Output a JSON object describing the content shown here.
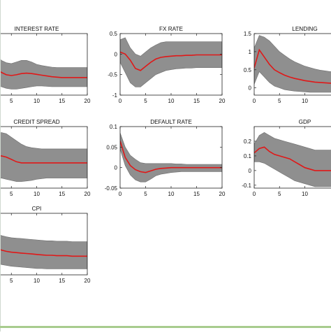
{
  "figure": {
    "band_color": "#8f8f8f",
    "line_color": "#e01818",
    "axes_color": "#222222"
  },
  "chart_data": [
    {
      "type": "line",
      "title": "INTEREST RATE",
      "xlim": [
        0,
        20
      ],
      "x_ticks": [
        "5",
        "10",
        "15",
        "20"
      ],
      "y_ticks": [],
      "x": [
        0,
        1,
        2,
        3,
        4,
        5,
        6,
        7,
        8,
        9,
        10,
        11,
        12,
        13,
        14,
        15,
        16,
        17,
        18,
        19,
        20
      ],
      "series": [
        {
          "role": "median",
          "values": [
            0.85,
            0.72,
            0.58,
            0.48,
            0.42,
            0.4,
            0.42,
            0.45,
            0.46,
            0.45,
            0.43,
            0.41,
            0.39,
            0.37,
            0.36,
            0.35,
            0.35,
            0.35,
            0.35,
            0.35,
            0.35
          ]
        },
        {
          "role": "upper",
          "values": [
            1.3,
            1.15,
            0.95,
            0.78,
            0.72,
            0.7,
            0.74,
            0.78,
            0.78,
            0.74,
            0.68,
            0.65,
            0.63,
            0.61,
            0.6,
            0.6,
            0.6,
            0.6,
            0.6,
            0.6,
            0.6
          ]
        },
        {
          "role": "lower",
          "values": [
            0.35,
            0.25,
            0.18,
            0.12,
            0.08,
            0.06,
            0.06,
            0.08,
            0.1,
            0.12,
            0.14,
            0.14,
            0.13,
            0.12,
            0.12,
            0.12,
            0.12,
            0.12,
            0.12,
            0.12,
            0.12
          ]
        }
      ]
    },
    {
      "type": "line",
      "title": "FX RATE",
      "xlim": [
        0,
        20
      ],
      "ylim": [
        -1,
        0.5
      ],
      "x_ticks": [
        "0",
        "5",
        "10",
        "15",
        "20"
      ],
      "y_ticks": [
        "-1",
        "-0.5",
        "0",
        "0.5"
      ],
      "x": [
        0,
        1,
        2,
        3,
        4,
        5,
        6,
        7,
        8,
        9,
        10,
        11,
        12,
        13,
        14,
        15,
        16,
        17,
        18,
        19,
        20
      ],
      "series": [
        {
          "role": "median",
          "values": [
            0.05,
            0.0,
            -0.15,
            -0.35,
            -0.4,
            -0.3,
            -0.2,
            -0.12,
            -0.08,
            -0.06,
            -0.05,
            -0.04,
            -0.04,
            -0.03,
            -0.03,
            -0.02,
            -0.02,
            -0.02,
            -0.02,
            -0.02,
            -0.02
          ]
        },
        {
          "role": "upper",
          "values": [
            0.35,
            0.4,
            0.15,
            0.0,
            -0.05,
            0.05,
            0.15,
            0.22,
            0.28,
            0.3,
            0.3,
            0.3,
            0.3,
            0.3,
            0.3,
            0.3,
            0.3,
            0.3,
            0.3,
            0.3,
            0.3
          ]
        },
        {
          "role": "lower",
          "values": [
            -0.2,
            -0.45,
            -0.7,
            -0.8,
            -0.8,
            -0.7,
            -0.6,
            -0.5,
            -0.45,
            -0.4,
            -0.38,
            -0.36,
            -0.35,
            -0.34,
            -0.34,
            -0.33,
            -0.33,
            -0.33,
            -0.33,
            -0.33,
            -0.33
          ]
        }
      ]
    },
    {
      "type": "line",
      "title": "LENDING",
      "xlim": [
        0,
        20
      ],
      "ylim": [
        -0.2,
        1.5
      ],
      "x_ticks": [
        "0",
        "5",
        "10"
      ],
      "y_ticks": [
        "0",
        "0.5",
        "1",
        "1.5"
      ],
      "x": [
        0,
        1,
        2,
        3,
        4,
        5,
        6,
        7,
        8,
        9,
        10,
        11,
        12,
        13,
        14,
        15,
        16,
        17,
        18,
        19,
        20
      ],
      "series": [
        {
          "role": "median",
          "values": [
            0.55,
            1.05,
            0.85,
            0.65,
            0.5,
            0.42,
            0.35,
            0.3,
            0.26,
            0.23,
            0.2,
            0.18,
            0.16,
            0.15,
            0.14,
            0.13,
            0.12,
            0.12,
            0.11,
            0.11,
            0.1
          ]
        },
        {
          "role": "upper",
          "values": [
            1.1,
            1.45,
            1.4,
            1.3,
            1.15,
            1.0,
            0.9,
            0.8,
            0.72,
            0.66,
            0.6,
            0.56,
            0.52,
            0.49,
            0.47,
            0.45,
            0.44,
            0.43,
            0.42,
            0.41,
            0.4
          ]
        },
        {
          "role": "lower",
          "values": [
            0.1,
            0.45,
            0.3,
            0.15,
            0.05,
            0.0,
            -0.05,
            -0.07,
            -0.09,
            -0.1,
            -0.11,
            -0.12,
            -0.12,
            -0.12,
            -0.12,
            -0.12,
            -0.12,
            -0.12,
            -0.12,
            -0.12,
            -0.12
          ]
        }
      ]
    },
    {
      "type": "line",
      "title": "CREDIT SPREAD",
      "xlim": [
        0,
        20
      ],
      "x_ticks": [
        "5",
        "10",
        "15",
        "20"
      ],
      "y_ticks": [],
      "x": [
        0,
        1,
        2,
        3,
        4,
        5,
        6,
        7,
        8,
        9,
        10,
        11,
        12,
        13,
        14,
        15,
        16,
        17,
        18,
        19,
        20
      ],
      "series": [
        {
          "role": "median",
          "values": [
            0.5,
            0.52,
            0.56,
            0.6,
            0.58,
            0.54,
            0.5,
            0.48,
            0.48,
            0.48,
            0.48,
            0.48,
            0.48,
            0.48,
            0.48,
            0.48,
            0.48,
            0.48,
            0.48,
            0.48,
            0.48
          ]
        },
        {
          "role": "upper",
          "values": [
            0.85,
            0.88,
            0.95,
            1.0,
            0.98,
            0.92,
            0.86,
            0.8,
            0.76,
            0.74,
            0.73,
            0.72,
            0.72,
            0.72,
            0.72,
            0.72,
            0.72,
            0.72,
            0.72,
            0.72,
            0.72
          ]
        },
        {
          "role": "lower",
          "values": [
            0.15,
            0.15,
            0.18,
            0.22,
            0.2,
            0.18,
            0.16,
            0.16,
            0.17,
            0.18,
            0.2,
            0.21,
            0.22,
            0.22,
            0.22,
            0.22,
            0.22,
            0.22,
            0.22,
            0.22,
            0.22
          ]
        }
      ]
    },
    {
      "type": "line",
      "title": "DEFAULT RATE",
      "xlim": [
        0,
        20
      ],
      "ylim": [
        -0.05,
        0.1
      ],
      "x_ticks": [
        "0",
        "5",
        "10",
        "15",
        "20"
      ],
      "y_ticks": [
        "-0.05",
        "0",
        "0.05",
        "0.1"
      ],
      "x": [
        0,
        1,
        2,
        3,
        4,
        5,
        6,
        7,
        8,
        9,
        10,
        11,
        12,
        13,
        14,
        15,
        16,
        17,
        18,
        19,
        20
      ],
      "series": [
        {
          "role": "median",
          "values": [
            0.065,
            0.025,
            0.005,
            -0.005,
            -0.01,
            -0.012,
            -0.008,
            -0.004,
            -0.002,
            -0.001,
            0.0,
            0.0,
            0.0,
            0.0,
            0.0,
            0.0,
            0.0,
            0.0,
            0.0,
            0.0,
            0.0
          ]
        },
        {
          "role": "upper",
          "values": [
            0.085,
            0.05,
            0.03,
            0.02,
            0.012,
            0.01,
            0.01,
            0.01,
            0.01,
            0.01,
            0.01,
            0.009,
            0.009,
            0.008,
            0.008,
            0.008,
            0.008,
            0.008,
            0.008,
            0.008,
            0.008
          ]
        },
        {
          "role": "lower",
          "values": [
            0.045,
            0.005,
            -0.018,
            -0.03,
            -0.035,
            -0.035,
            -0.028,
            -0.02,
            -0.016,
            -0.014,
            -0.012,
            -0.011,
            -0.01,
            -0.01,
            -0.01,
            -0.01,
            -0.01,
            -0.01,
            -0.01,
            -0.01,
            -0.01
          ]
        }
      ]
    },
    {
      "type": "line",
      "title": "GDP",
      "xlim": [
        0,
        20
      ],
      "ylim": [
        -0.12,
        0.3
      ],
      "x_ticks": [
        "0",
        "5",
        "10"
      ],
      "y_ticks": [
        "-0.1",
        "0",
        "0.1",
        "0.2"
      ],
      "x": [
        0,
        1,
        2,
        3,
        4,
        5,
        6,
        7,
        8,
        9,
        10,
        11,
        12,
        13,
        14,
        15,
        16,
        17,
        18,
        19,
        20
      ],
      "series": [
        {
          "role": "median",
          "values": [
            0.12,
            0.15,
            0.16,
            0.13,
            0.11,
            0.1,
            0.09,
            0.08,
            0.06,
            0.04,
            0.02,
            0.01,
            0.0,
            0.0,
            0.0,
            0.0,
            0.0,
            0.0,
            0.0,
            0.0,
            0.0
          ]
        },
        {
          "role": "upper",
          "values": [
            0.18,
            0.24,
            0.26,
            0.24,
            0.22,
            0.21,
            0.2,
            0.19,
            0.18,
            0.17,
            0.16,
            0.15,
            0.14,
            0.14,
            0.14,
            0.14,
            0.14,
            0.14,
            0.14,
            0.14,
            0.14
          ]
        },
        {
          "role": "lower",
          "values": [
            0.06,
            0.06,
            0.05,
            0.03,
            0.01,
            -0.01,
            -0.03,
            -0.05,
            -0.07,
            -0.08,
            -0.09,
            -0.1,
            -0.11,
            -0.11,
            -0.11,
            -0.11,
            -0.11,
            -0.11,
            -0.11,
            -0.11,
            -0.11
          ]
        }
      ]
    },
    {
      "type": "line",
      "title": "CPI",
      "xlim": [
        0,
        20
      ],
      "x_ticks": [
        "5",
        "10",
        "15",
        "20"
      ],
      "y_ticks": [],
      "x": [
        0,
        1,
        2,
        3,
        4,
        5,
        6,
        7,
        8,
        9,
        10,
        11,
        12,
        13,
        14,
        15,
        16,
        17,
        18,
        19,
        20
      ],
      "series": [
        {
          "role": "median",
          "values": [
            0.8,
            0.65,
            0.52,
            0.45,
            0.42,
            0.4,
            0.39,
            0.38,
            0.37,
            0.36,
            0.35,
            0.34,
            0.33,
            0.33,
            0.32,
            0.32,
            0.32,
            0.31,
            0.31,
            0.31,
            0.31
          ]
        },
        {
          "role": "upper",
          "values": [
            1.15,
            1.0,
            0.85,
            0.78,
            0.75,
            0.73,
            0.72,
            0.71,
            0.7,
            0.69,
            0.68,
            0.67,
            0.66,
            0.66,
            0.65,
            0.65,
            0.65,
            0.64,
            0.64,
            0.64,
            0.64
          ]
        },
        {
          "role": "lower",
          "values": [
            0.45,
            0.3,
            0.18,
            0.12,
            0.1,
            0.08,
            0.07,
            0.06,
            0.05,
            0.04,
            0.03,
            0.03,
            0.02,
            0.02,
            0.02,
            0.02,
            0.02,
            0.02,
            0.02,
            0.02,
            0.02
          ]
        }
      ]
    }
  ]
}
